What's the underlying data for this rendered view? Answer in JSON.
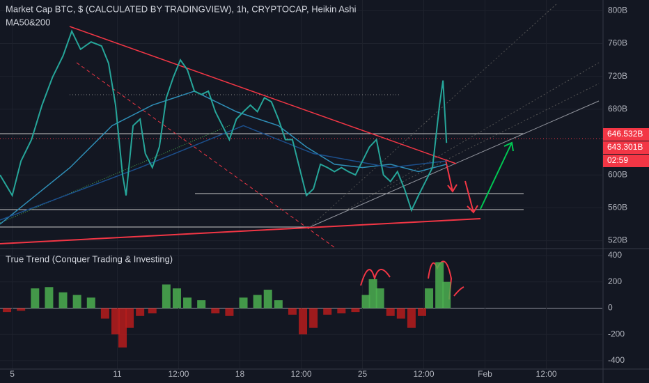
{
  "chart_data": {
    "type": "line",
    "title": "Market Cap BTC, $ (CALCULATED BY TRADINGVIEW), 1h, CRYPTOCAP, Heikin Ashi",
    "subtitle": "MA50&200",
    "x": [
      -0.7,
      0,
      0.5,
      1.1,
      1.7,
      2.3,
      2.9,
      3.4,
      3.9,
      4.5,
      5.1,
      5.5,
      5.9,
      6.3,
      6.5,
      6.9,
      7.3,
      7.6,
      8.0,
      8.4,
      8.8,
      9.2,
      9.6,
      10.0,
      10.4,
      10.8,
      11.2,
      11.6,
      12.0,
      12.4,
      12.8,
      13.2,
      13.6,
      14.0,
      14.4,
      14.8,
      15.2,
      15.6,
      16.0,
      16.4,
      16.8,
      17.2,
      17.6,
      18.0,
      18.4,
      18.8,
      19.2,
      19.6,
      20.0,
      20.4,
      20.8,
      21.2,
      21.6,
      22.0,
      22.4,
      22.8,
      23.2,
      23.6,
      24.0,
      24.4,
      24.6,
      24.8
    ],
    "series": [
      {
        "color": "#26a69a",
        "values": [
          600,
          575,
          617,
          643,
          685,
          719,
          745,
          775,
          753,
          762,
          757,
          736,
          685,
          600,
          575,
          660,
          668,
          626,
          609,
          634,
          694,
          719,
          740,
          728,
          702,
          698,
          702,
          677,
          660,
          643,
          668,
          677,
          685,
          677,
          694,
          689,
          668,
          643,
          643,
          609,
          575,
          583,
          613,
          609,
          604,
          609,
          604,
          600,
          617,
          634,
          643,
          600,
          592,
          604,
          583,
          557,
          575,
          592,
          609,
          685,
          715,
          639
        ]
      }
    ],
    "ma_lines": [
      {
        "color": "#2f8fb8",
        "x": [
          -0.7,
          3.3,
          5.7,
          8.0,
          10.4,
          12.8,
          15.2,
          16.8,
          18.4,
          20.0,
          21.6,
          23.2,
          24.8
        ],
        "values": [
          540,
          609,
          660,
          685,
          702,
          677,
          660,
          634,
          613,
          609,
          613,
          604,
          613
        ]
      },
      {
        "color": "#1c4f8c",
        "x": [
          -0.7,
          7.3,
          13.2,
          17.2,
          21.6,
          24.8
        ],
        "values": [
          545,
          609,
          660,
          626,
          609,
          617
        ]
      }
    ],
    "xlim": [
      -0.7,
      33.7
    ],
    "xticks": [
      {
        "value": 0,
        "label": "5"
      },
      {
        "value": 6,
        "label": "11"
      },
      {
        "value": 9.5,
        "label": "12:00"
      },
      {
        "value": 13,
        "label": "18"
      },
      {
        "value": 16.5,
        "label": "12:00"
      },
      {
        "value": 20,
        "label": "25"
      },
      {
        "value": 23.5,
        "label": "12:00"
      },
      {
        "value": 27,
        "label": "Feb"
      },
      {
        "value": 30.5,
        "label": "12:00"
      }
    ],
    "ylim": [
      512,
      813
    ],
    "yticks": [
      {
        "value": 520,
        "label": "520B"
      },
      {
        "value": 560,
        "label": "560B"
      },
      {
        "value": 600,
        "label": "600B"
      },
      {
        "value": 680,
        "label": "680B"
      },
      {
        "value": 720,
        "label": "720B"
      },
      {
        "value": 760,
        "label": "760B"
      },
      {
        "value": 800,
        "label": "800B"
      }
    ],
    "price_labels": [
      "646.532B",
      "643.301B",
      "02:59"
    ],
    "oscillator": {
      "type": "bar",
      "title": "True Trend (Conquer Trading & Investing)",
      "x": [
        -0.3,
        0.5,
        1.3,
        2.1,
        2.9,
        3.7,
        4.5,
        5.3,
        5.9,
        6.3,
        6.7,
        7.3,
        8.0,
        8.8,
        9.4,
        10.0,
        10.8,
        11.6,
        12.4,
        13.2,
        14.0,
        14.6,
        15.2,
        16.0,
        16.6,
        17.2,
        18.0,
        18.8,
        19.6,
        20.2,
        20.6,
        21.0,
        21.6,
        22.2,
        22.8,
        23.4,
        23.8,
        24.4,
        24.8
      ],
      "values": [
        -30,
        -20,
        150,
        160,
        120,
        100,
        80,
        -80,
        -200,
        -300,
        -150,
        -60,
        -40,
        180,
        150,
        80,
        60,
        -40,
        -60,
        80,
        100,
        140,
        60,
        -50,
        -200,
        -150,
        -50,
        -40,
        -30,
        100,
        220,
        150,
        -60,
        -80,
        -150,
        -60,
        150,
        350,
        200
      ],
      "pos_color": "#4caf50",
      "neg_color": "#b71c1c",
      "ylim": [
        -464,
        437
      ],
      "yticks": [
        400,
        200,
        0,
        -200,
        -400
      ]
    }
  }
}
